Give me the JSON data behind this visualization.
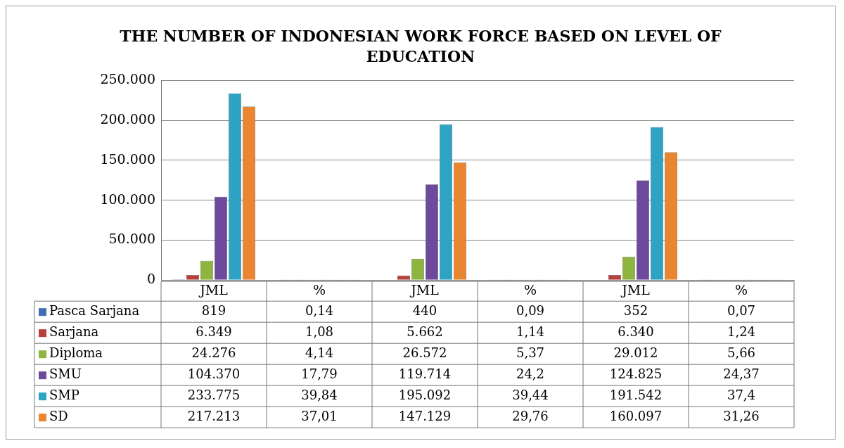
{
  "chart_data": {
    "type": "bar",
    "title": "THE NUMBER OF INDONESIAN WORK FORCE BASED ON LEVEL OF EDUCATION",
    "categories": [
      "JML",
      "%",
      "JML",
      "%",
      "JML",
      "%"
    ],
    "series": [
      {
        "name": "Pasca Sarjana",
        "color": "#3d6fae",
        "values": [
          819,
          0.14,
          440,
          0.09,
          352,
          0.07
        ],
        "value_labels": [
          "819",
          "0,14",
          "440",
          "0,09",
          "352",
          "0,07"
        ]
      },
      {
        "name": "Sarjana",
        "color": "#b8403c",
        "values": [
          6349,
          1.08,
          5662,
          1.14,
          6340,
          1.24
        ],
        "value_labels": [
          "6.349",
          "1,08",
          "5.662",
          "1,14",
          "6.340",
          "1,24"
        ]
      },
      {
        "name": "Diploma",
        "color": "#8db540",
        "values": [
          24276,
          4.14,
          26572,
          5.37,
          29012,
          5.66
        ],
        "value_labels": [
          "24.276",
          "4,14",
          "26.572",
          "5,37",
          "29.012",
          "5,66"
        ]
      },
      {
        "name": "SMU",
        "color": "#6e4a9c",
        "values": [
          104370,
          17.79,
          119714,
          24.2,
          124825,
          24.37
        ],
        "value_labels": [
          "104.370",
          "17,79",
          "119.714",
          "24,2",
          "124.825",
          "24,37"
        ]
      },
      {
        "name": "SMP",
        "color": "#2ea3c4",
        "values": [
          233775,
          39.84,
          195092,
          39.44,
          191542,
          37.4
        ],
        "value_labels": [
          "233.775",
          "39,84",
          "195.092",
          "39,44",
          "191.542",
          "37,4"
        ]
      },
      {
        "name": "SD",
        "color": "#ea8530",
        "values": [
          217213,
          37.01,
          147129,
          29.76,
          160097,
          31.26
        ],
        "value_labels": [
          "217.213",
          "37,01",
          "147.129",
          "29,76",
          "160.097",
          "31,26"
        ]
      }
    ],
    "ylim": [
      0,
      250000
    ],
    "yticks": [
      {
        "value": 0,
        "label": "0"
      },
      {
        "value": 50000,
        "label": "50.000"
      },
      {
        "value": 100000,
        "label": "100.000"
      },
      {
        "value": 150000,
        "label": "150.000"
      },
      {
        "value": 200000,
        "label": "200.000"
      },
      {
        "value": 250000,
        "label": "250.000"
      }
    ],
    "grid": "y",
    "legend": "bottom"
  }
}
